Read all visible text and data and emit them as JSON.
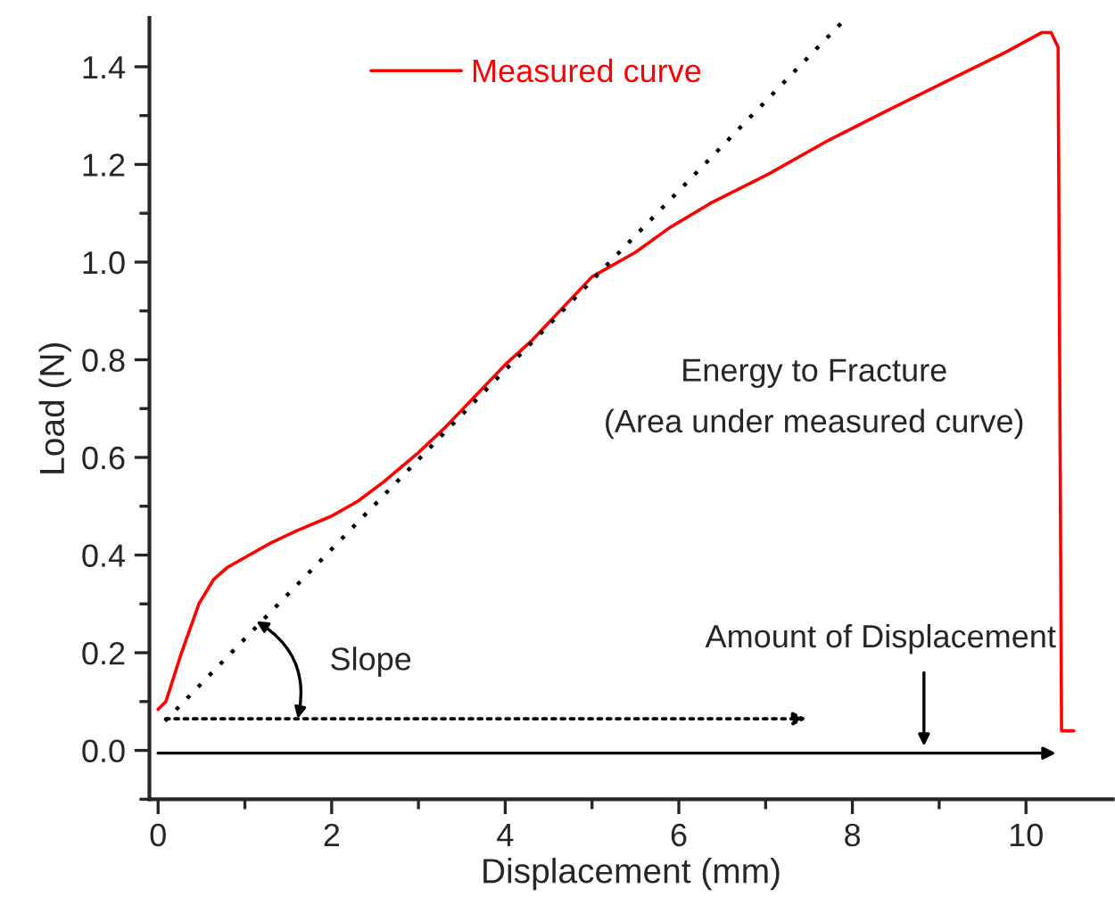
{
  "chart_data": {
    "type": "line",
    "xlabel": "Displacement (mm)",
    "ylabel": "Load (N)",
    "xlim": [
      -0.1,
      11
    ],
    "ylim": [
      -0.1,
      1.5
    ],
    "xticks": [
      0,
      2,
      4,
      6,
      8,
      10,
      {
        "value": 1,
        "label": null
      },
      {
        "value": 3,
        "label": null
      },
      {
        "value": 5,
        "label": null
      },
      {
        "value": 7,
        "label": null
      },
      {
        "value": 9,
        "label": null
      }
    ],
    "yticks": [
      {
        "value": 0.0,
        "label": "0.0"
      },
      {
        "value": 0.2,
        "label": "0.2"
      },
      {
        "value": 0.4,
        "label": "0.4"
      },
      {
        "value": 0.6,
        "label": "0.6"
      },
      {
        "value": 0.8,
        "label": "0.8"
      },
      {
        "value": 1.0,
        "label": "1.0"
      },
      {
        "value": 1.2,
        "label": "1.2"
      },
      {
        "value": 1.4,
        "label": "1.4"
      },
      {
        "value": -0.1,
        "label": null
      },
      {
        "value": 0.1,
        "label": null
      },
      {
        "value": 0.3,
        "label": null
      },
      {
        "value": 0.5,
        "label": null
      },
      {
        "value": 0.7,
        "label": null
      },
      {
        "value": 0.9,
        "label": null
      },
      {
        "value": 1.1,
        "label": null
      },
      {
        "value": 1.3,
        "label": null
      }
    ],
    "grid": false,
    "legend": "top left",
    "marker": "none",
    "series": [
      {
        "name": "Measured curve",
        "color": "#ff0000",
        "line_style": "solid",
        "x": [
          0,
          0.09,
          0.27,
          0.47,
          0.64,
          0.8,
          1.05,
          1.3,
          1.6,
          2.0,
          2.3,
          2.6,
          3.0,
          3.3,
          4.0,
          4.31,
          5.0,
          5.5,
          5.89,
          6.36,
          7.03,
          7.73,
          8.4,
          9.08,
          9.77,
          10.18,
          10.29,
          10.37,
          10.41,
          10.55
        ],
        "values": [
          0.084,
          0.1,
          0.2,
          0.3,
          0.35,
          0.375,
          0.4,
          0.425,
          0.45,
          0.48,
          0.51,
          0.55,
          0.61,
          0.66,
          0.79,
          0.84,
          0.97,
          1.02,
          1.07,
          1.12,
          1.18,
          1.25,
          1.31,
          1.37,
          1.43,
          1.47,
          1.47,
          1.44,
          0.04,
          0.04
        ]
      },
      {
        "color": "#000000",
        "line_style": "dotted",
        "x": [
          0.08,
          7.93
        ],
        "values": [
          0.06,
          1.5
        ]
      }
    ],
    "annotations": [
      "Slope",
      "Amount of Displacement",
      "Energy to Fracture\n(Area under measured curve)"
    ]
  }
}
